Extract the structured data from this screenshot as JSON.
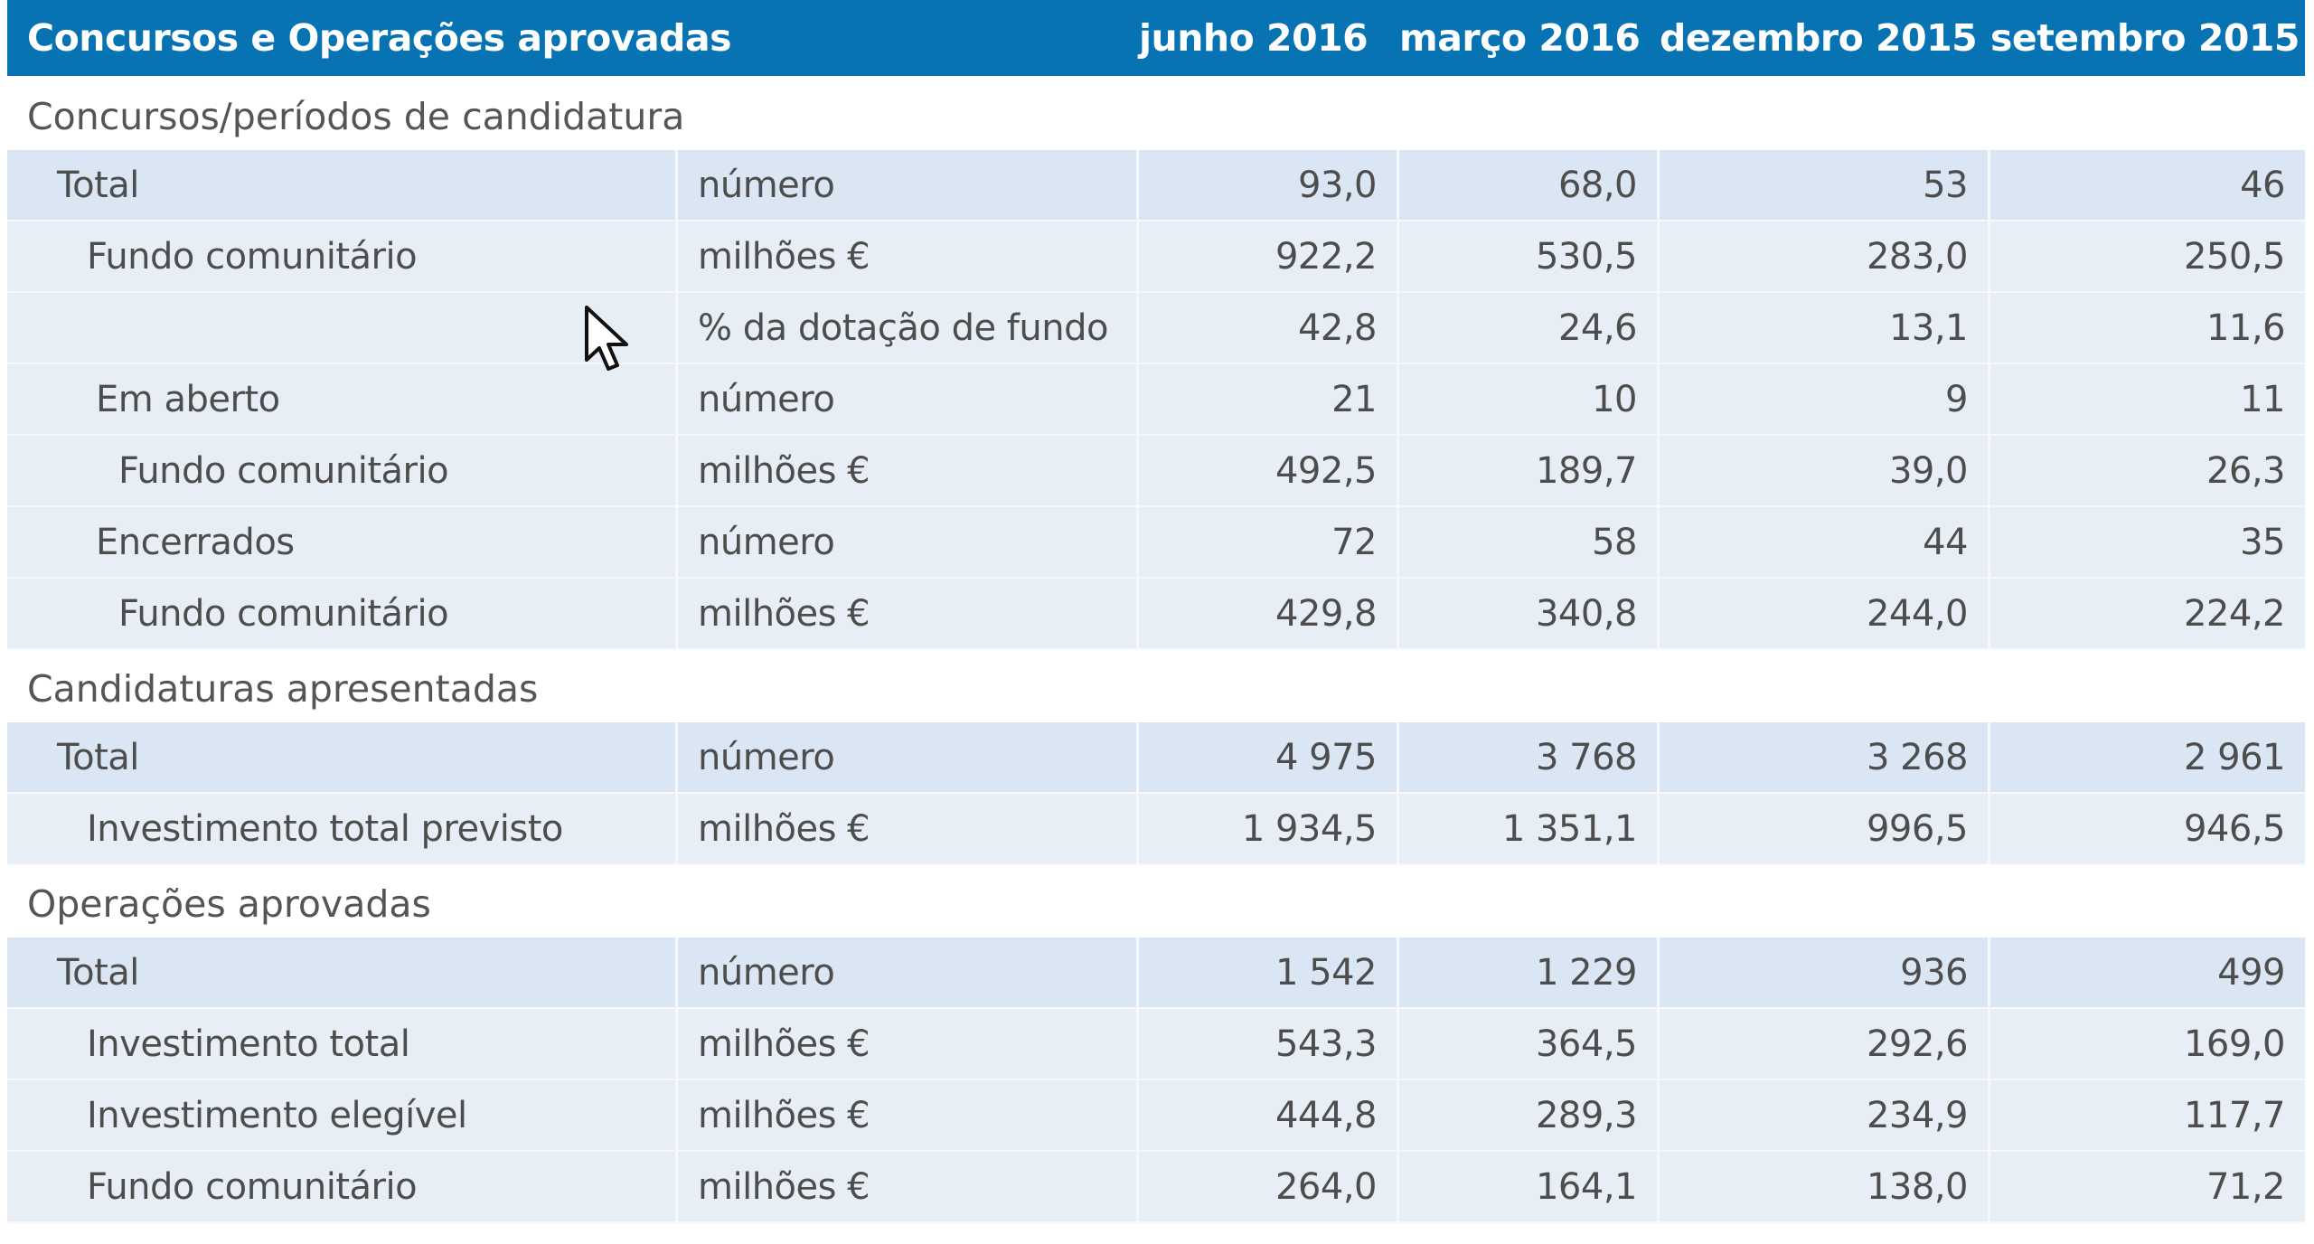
{
  "table": {
    "title": "Concursos e Operações aprovadas",
    "columns": [
      "junho 2016",
      "março 2016",
      "dezembro 2015",
      "setembro 2015"
    ],
    "sections": [
      {
        "title": "Concursos/períodos de candidatura",
        "rows": [
          {
            "label": "Total",
            "unit": "número",
            "values": [
              "93,0",
              "68,0",
              "53",
              "46"
            ]
          },
          {
            "label": "Fundo comunitário",
            "unit": "milhões €",
            "values": [
              "922,2",
              "530,5",
              "283,0",
              "250,5"
            ]
          },
          {
            "label": "",
            "unit": "% da dotação de fundo",
            "values": [
              "42,8",
              "24,6",
              "13,1",
              "11,6"
            ]
          },
          {
            "label": "Em aberto",
            "unit": "número",
            "values": [
              "21",
              "10",
              "9",
              "11"
            ]
          },
          {
            "label": "Fundo comunitário",
            "unit": "milhões €",
            "values": [
              "492,5",
              "189,7",
              "39,0",
              "26,3"
            ]
          },
          {
            "label": "Encerrados",
            "unit": "número",
            "values": [
              "72",
              "58",
              "44",
              "35"
            ]
          },
          {
            "label": "Fundo comunitário",
            "unit": "milhões €",
            "values": [
              "429,8",
              "340,8",
              "244,0",
              "224,2"
            ]
          }
        ]
      },
      {
        "title": "Candidaturas apresentadas",
        "rows": [
          {
            "label": "Total",
            "unit": "número",
            "values": [
              "4 975",
              "3 768",
              "3 268",
              "2 961"
            ]
          },
          {
            "label": "Investimento total previsto",
            "unit": "milhões €",
            "values": [
              "1 934,5",
              "1 351,1",
              "996,5",
              "946,5"
            ]
          }
        ]
      },
      {
        "title": "Operações aprovadas",
        "rows": [
          {
            "label": "Total",
            "unit": "número",
            "values": [
              "1 542",
              "1 229",
              "936",
              "499"
            ]
          },
          {
            "label": "Investimento total",
            "unit": "milhões €",
            "values": [
              "543,3",
              "364,5",
              "292,6",
              "169,0"
            ]
          },
          {
            "label": "Investimento elegível",
            "unit": "milhões €",
            "values": [
              "444,8",
              "289,3",
              "234,9",
              "117,7"
            ]
          },
          {
            "label": "Fundo comunitário",
            "unit": "milhões €",
            "values": [
              "264,0",
              "164,1",
              "138,0",
              "71,2"
            ]
          }
        ]
      }
    ]
  },
  "colors": {
    "header_bg": "#0773b2",
    "header_text": "#ffffff",
    "row_bg": "#e8eef5",
    "row_bg_total": "#dae6f3",
    "text": "#4d4d4d"
  },
  "cursor": {
    "icon": "mouse-pointer-icon"
  }
}
